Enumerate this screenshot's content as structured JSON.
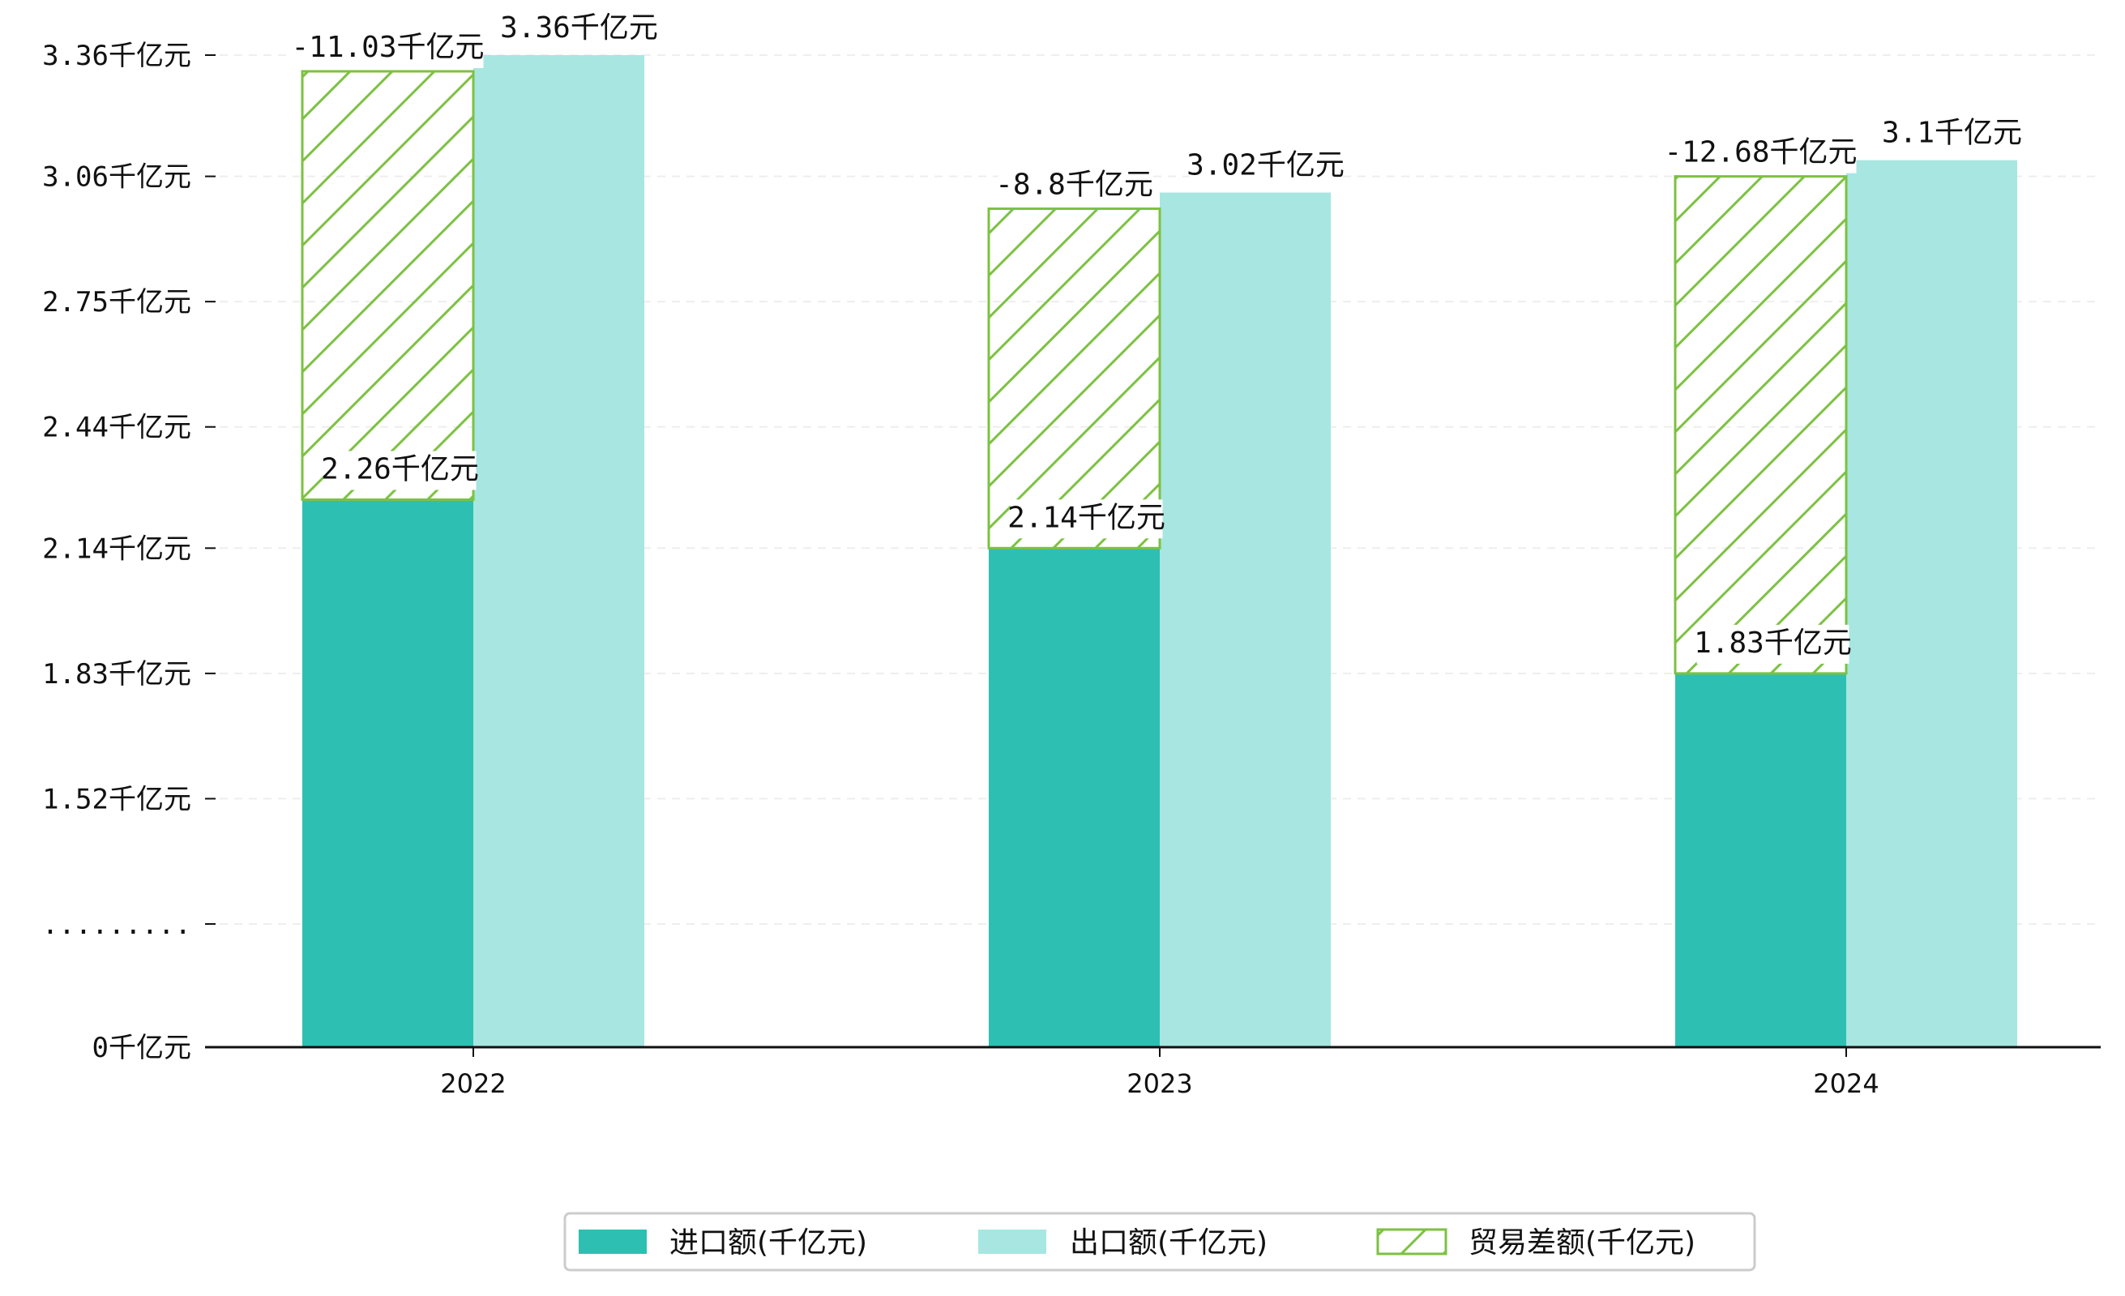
{
  "chart_data": {
    "type": "bar",
    "title": "",
    "xlabel": "",
    "ylabel": "",
    "categories": [
      "2022",
      "2023",
      "2024"
    ],
    "series": [
      {
        "name": "进口额(千亿元)",
        "values": [
          2.26,
          2.14,
          1.83
        ],
        "color": "#2ebfb3",
        "labels": [
          "2.26千亿元",
          "2.14千亿元",
          "1.83千亿元"
        ]
      },
      {
        "name": "出口额(千亿元)",
        "values": [
          3.36,
          3.02,
          3.1
        ],
        "color": "#a8e6e1",
        "labels": [
          "3.36千亿元",
          "3.02千亿元",
          "3.1千亿元"
        ]
      },
      {
        "name": "贸易差额(千亿元)",
        "values": [
          -11.03,
          -8.8,
          -12.68
        ],
        "color": "#7dc142",
        "hatch": true,
        "labels": [
          "-11.03千亿元",
          "-8.8千亿元",
          "-12.68千亿元"
        ]
      }
    ],
    "y_ticks": [
      {
        "value": 0,
        "label": "0千亿元"
      },
      {
        "value": 1.21,
        "label": "........."
      },
      {
        "value": 1.52,
        "label": "1.52千亿元"
      },
      {
        "value": 1.83,
        "label": "1.83千亿元"
      },
      {
        "value": 2.14,
        "label": "2.14千亿元"
      },
      {
        "value": 2.44,
        "label": "2.44千亿元"
      },
      {
        "value": 2.75,
        "label": "2.75千亿元"
      },
      {
        "value": 3.06,
        "label": "3.06千亿元"
      },
      {
        "value": 3.36,
        "label": "3.36千亿元"
      }
    ],
    "y_axis_note": "broken axis: 0 to ~1.21 compressed",
    "grid": "horizontal dashed",
    "legend_position": "bottom-center"
  }
}
